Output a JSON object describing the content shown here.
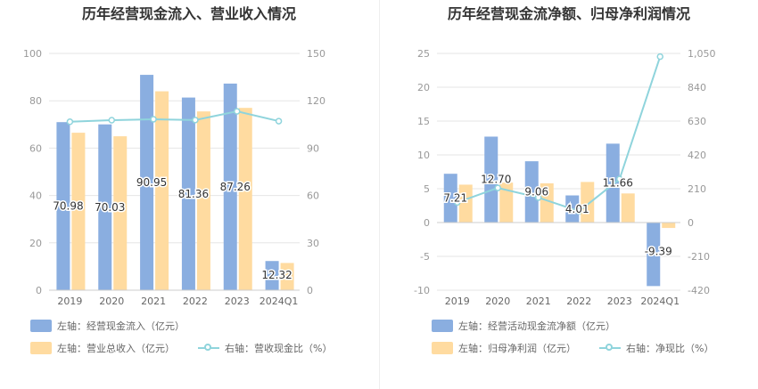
{
  "colors": {
    "primary": "#8aaee0",
    "secondary": "#ffdba0",
    "line": "#8fd4dc"
  },
  "chart_data": [
    {
      "type": "bar",
      "title": "历年经营现金流入、营业收入情况",
      "categories": [
        "2019",
        "2020",
        "2021",
        "2022",
        "2023",
        "2024Q1"
      ],
      "left_axis": {
        "ylim": [
          0,
          100
        ],
        "ticks": [
          "0",
          "20",
          "40",
          "60",
          "80",
          "100"
        ]
      },
      "right_axis": {
        "ylim": [
          0,
          150
        ],
        "ticks": [
          "0",
          "30",
          "60",
          "90",
          "120",
          "150"
        ]
      },
      "series": [
        {
          "name": "左轴：经营现金流入（亿元）",
          "type": "bar",
          "axis": "left",
          "values": [
            70.98,
            70.03,
            90.95,
            81.36,
            87.26,
            12.32
          ],
          "labels": [
            "70.98",
            "70.03",
            "90.95",
            "81.36",
            "87.26",
            "12.32"
          ]
        },
        {
          "name": "左轴：营业总收入（亿元）",
          "type": "bar",
          "axis": "left",
          "values": [
            66.5,
            65.0,
            84.0,
            75.5,
            77.0,
            11.5
          ]
        },
        {
          "name": "右轴：营收现金比（%）",
          "type": "line",
          "axis": "right",
          "values": [
            106.7,
            107.7,
            108.3,
            107.8,
            113.3,
            107.1
          ]
        }
      ],
      "legend": "bottom"
    },
    {
      "type": "bar",
      "title": "历年经营现金流净额、归母净利润情况",
      "categories": [
        "2019",
        "2020",
        "2021",
        "2022",
        "2023",
        "2024Q1"
      ],
      "left_axis": {
        "ylim": [
          -10,
          25
        ],
        "ticks": [
          "-10",
          "-5",
          "0",
          "5",
          "10",
          "15",
          "20",
          "25"
        ]
      },
      "right_axis": {
        "ylim": [
          -420,
          1050
        ],
        "ticks": [
          "-420",
          "-210",
          "0",
          "210",
          "420",
          "630",
          "840",
          "1,050"
        ]
      },
      "series": [
        {
          "name": "左轴：经营活动现金流净额（亿元）",
          "type": "bar",
          "axis": "left",
          "values": [
            7.21,
            12.7,
            9.06,
            4.01,
            11.66,
            -9.39
          ],
          "labels": [
            "7.21",
            "12.70",
            "9.06",
            "4.01",
            "11.66",
            "-9.39"
          ]
        },
        {
          "name": "左轴：归母净利润（亿元）",
          "type": "bar",
          "axis": "left",
          "values": [
            5.6,
            5.9,
            5.8,
            6.0,
            4.3,
            -0.8
          ]
        },
        {
          "name": "右轴：净现比（%）",
          "type": "line",
          "axis": "right",
          "values": [
            125,
            215,
            155,
            70,
            270,
            1030
          ]
        }
      ],
      "legend": "bottom"
    }
  ]
}
